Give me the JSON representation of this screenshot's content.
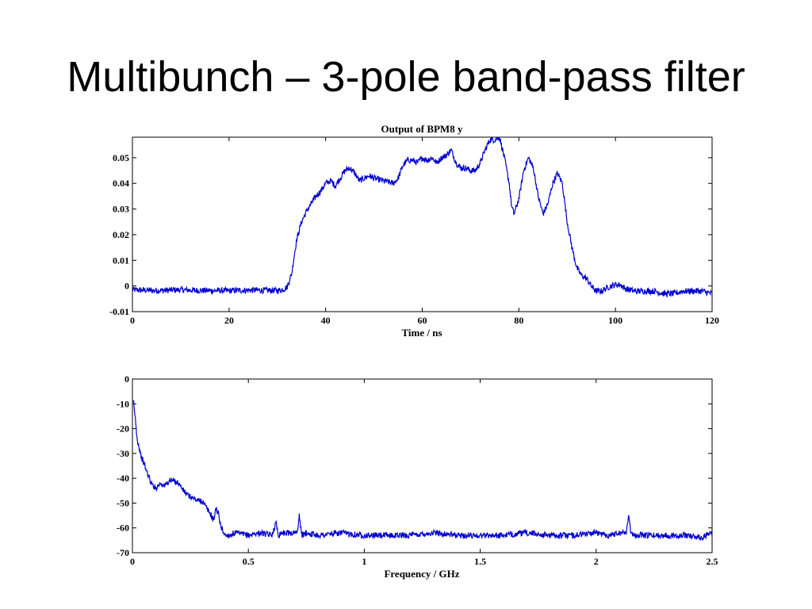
{
  "slide": {
    "title": "Multibunch – 3-pole band-pass filter"
  },
  "colors": {
    "trace": "#0000cc",
    "axis": "#000000",
    "background": "#ffffff"
  },
  "chart_data": [
    {
      "type": "line",
      "title": "Output of BPM8 y",
      "xlabel": "Time / ns",
      "ylabel": "",
      "xlim": [
        0,
        120
      ],
      "ylim": [
        -0.01,
        0.058
      ],
      "xticks": [
        0,
        20,
        40,
        60,
        80,
        100,
        120
      ],
      "xtick_labels": [
        "0",
        "20",
        "40",
        "60",
        "80",
        "100",
        "120"
      ],
      "yticks": [
        -0.01,
        0,
        0.01,
        0.02,
        0.03,
        0.04,
        0.05
      ],
      "ytick_labels": [
        "-0.01",
        "0",
        "0.01",
        "0.02",
        "0.03",
        "0.04",
        "0.05"
      ],
      "grid": false,
      "series": [
        {
          "noise": 0.0012,
          "x": [
            0,
            5,
            10,
            15,
            20,
            25,
            30,
            31,
            32,
            33,
            33.5,
            34,
            35,
            36,
            37,
            38,
            39,
            40,
            41,
            42,
            43,
            44,
            45,
            46,
            47,
            48,
            49,
            50,
            52,
            54,
            55,
            56,
            57,
            58,
            59,
            60,
            61,
            62,
            63,
            64,
            65,
            66,
            67,
            68,
            69,
            70,
            71,
            72,
            73,
            74,
            75,
            76,
            77,
            78,
            78.5,
            79,
            80,
            81,
            82,
            83,
            84,
            85,
            86,
            87,
            88,
            89,
            90,
            91,
            92,
            93,
            94,
            95,
            96,
            97,
            98,
            99,
            100,
            101,
            102,
            104,
            106,
            108,
            110,
            112,
            114,
            116,
            118,
            120
          ],
          "y": [
            -0.0015,
            -0.0018,
            -0.0015,
            -0.0018,
            -0.0018,
            -0.0016,
            -0.0018,
            -0.0015,
            -0.0005,
            0.005,
            0.012,
            0.018,
            0.025,
            0.029,
            0.032,
            0.035,
            0.037,
            0.04,
            0.041,
            0.039,
            0.042,
            0.045,
            0.046,
            0.044,
            0.041,
            0.042,
            0.043,
            0.042,
            0.041,
            0.04,
            0.042,
            0.047,
            0.049,
            0.049,
            0.048,
            0.05,
            0.049,
            0.05,
            0.048,
            0.05,
            0.051,
            0.053,
            0.048,
            0.046,
            0.046,
            0.045,
            0.045,
            0.048,
            0.053,
            0.057,
            0.057,
            0.058,
            0.05,
            0.04,
            0.031,
            0.028,
            0.034,
            0.045,
            0.05,
            0.046,
            0.035,
            0.028,
            0.032,
            0.04,
            0.044,
            0.04,
            0.025,
            0.015,
            0.007,
            0.004,
            0.003,
            0.0,
            -0.002,
            -0.002,
            -0.001,
            0.0,
            0.0005,
            0.0005,
            -0.001,
            -0.002,
            -0.002,
            -0.002,
            -0.003,
            -0.003,
            -0.002,
            -0.002,
            -0.002,
            -0.003
          ]
        }
      ]
    },
    {
      "type": "line",
      "title": "",
      "xlabel": "Frequency / GHz",
      "ylabel": "",
      "xlim": [
        0,
        2.5
      ],
      "ylim": [
        -70,
        0
      ],
      "xticks": [
        0,
        0.5,
        1,
        1.5,
        2,
        2.5
      ],
      "xtick_labels": [
        "0",
        "0.5",
        "1",
        "1.5",
        "2",
        "2.5"
      ],
      "yticks": [
        -70,
        -60,
        -50,
        -40,
        -30,
        -20,
        -10,
        0
      ],
      "ytick_labels": [
        "-70",
        "-60",
        "-50",
        "-40",
        "-30",
        "-20",
        "-10",
        "0"
      ],
      "grid": false,
      "series": [
        {
          "noise": 1.2,
          "x": [
            0.0,
            0.005,
            0.01,
            0.015,
            0.02,
            0.03,
            0.04,
            0.05,
            0.06,
            0.07,
            0.08,
            0.09,
            0.1,
            0.12,
            0.14,
            0.16,
            0.18,
            0.2,
            0.22,
            0.24,
            0.26,
            0.28,
            0.3,
            0.32,
            0.34,
            0.35,
            0.36,
            0.37,
            0.38,
            0.39,
            0.4,
            0.42,
            0.44,
            0.5,
            0.55,
            0.6,
            0.62,
            0.63,
            0.64,
            0.7,
            0.71,
            0.72,
            0.73,
            0.75,
            0.8,
            0.9,
            1.0,
            1.05,
            1.1,
            1.2,
            1.3,
            1.4,
            1.5,
            1.6,
            1.7,
            1.8,
            1.9,
            2.0,
            2.05,
            2.1,
            2.13,
            2.14,
            2.15,
            2.16,
            2.2,
            2.3,
            2.4,
            2.45,
            2.5
          ],
          "y": [
            -10,
            -9,
            -14,
            -18,
            -24,
            -28,
            -32,
            -34,
            -37,
            -39,
            -42,
            -43,
            -44,
            -42,
            -43,
            -41,
            -41,
            -42,
            -45,
            -47,
            -48,
            -49,
            -49,
            -52,
            -55,
            -57,
            -52,
            -54,
            -59,
            -61,
            -63,
            -63,
            -62,
            -63,
            -62,
            -63,
            -58,
            -63,
            -62,
            -62,
            -62,
            -55,
            -63,
            -62,
            -63,
            -62,
            -63,
            -63,
            -63,
            -63,
            -62,
            -63,
            -63,
            -63,
            -62,
            -63,
            -63,
            -62,
            -63,
            -62,
            -62,
            -54,
            -62,
            -63,
            -63,
            -63,
            -63,
            -64,
            -62
          ]
        }
      ]
    }
  ]
}
